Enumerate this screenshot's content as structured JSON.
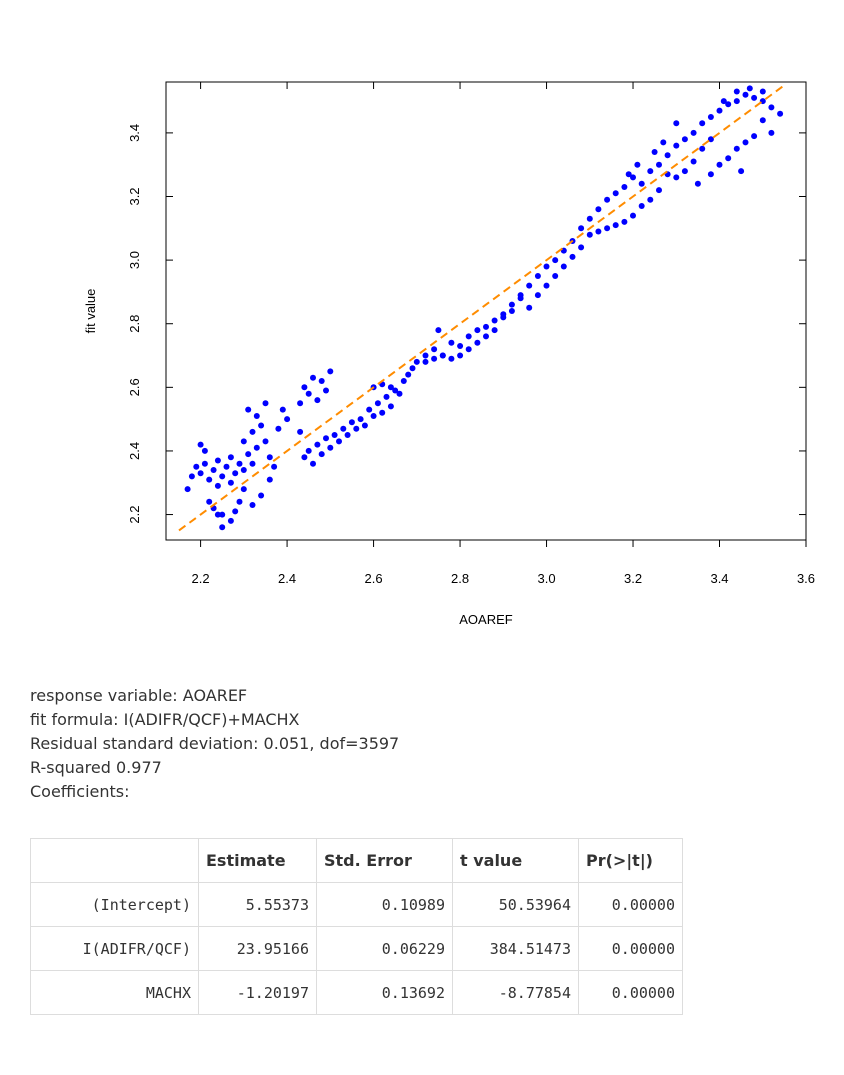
{
  "chart_data": {
    "type": "scatter",
    "title": "",
    "xlabel": "AOAREF",
    "ylabel": "fit value",
    "xlim": [
      2.12,
      3.6
    ],
    "ylim": [
      2.12,
      3.56
    ],
    "x_ticks": [
      "2.2",
      "2.4",
      "2.6",
      "2.8",
      "3.0",
      "3.2",
      "3.4",
      "3.6"
    ],
    "y_ticks": [
      "2.2",
      "2.4",
      "2.6",
      "2.8",
      "3.0",
      "3.2",
      "3.4"
    ],
    "grid": false,
    "legend": "none",
    "point_color": "#0000ff",
    "reference_line": {
      "slope": 1,
      "intercept": 0,
      "x_range": [
        2.15,
        3.55
      ],
      "color": "#ff8c00",
      "style": "dashed"
    },
    "series": [
      {
        "points": [
          [
            2.17,
            2.28
          ],
          [
            2.18,
            2.32
          ],
          [
            2.19,
            2.35
          ],
          [
            2.2,
            2.33
          ],
          [
            2.21,
            2.36
          ],
          [
            2.22,
            2.31
          ],
          [
            2.23,
            2.34
          ],
          [
            2.24,
            2.37
          ],
          [
            2.25,
            2.32
          ],
          [
            2.26,
            2.35
          ],
          [
            2.27,
            2.38
          ],
          [
            2.28,
            2.33
          ],
          [
            2.29,
            2.36
          ],
          [
            2.3,
            2.34
          ],
          [
            2.31,
            2.39
          ],
          [
            2.32,
            2.36
          ],
          [
            2.33,
            2.41
          ],
          [
            2.2,
            2.42
          ],
          [
            2.21,
            2.4
          ],
          [
            2.24,
            2.29
          ],
          [
            2.27,
            2.3
          ],
          [
            2.3,
            2.43
          ],
          [
            2.32,
            2.46
          ],
          [
            2.34,
            2.48
          ],
          [
            2.33,
            2.51
          ],
          [
            2.35,
            2.55
          ],
          [
            2.31,
            2.53
          ],
          [
            2.23,
            2.22
          ],
          [
            2.25,
            2.2
          ],
          [
            2.27,
            2.18
          ],
          [
            2.22,
            2.24
          ],
          [
            2.28,
            2.21
          ],
          [
            2.29,
            2.24
          ],
          [
            2.3,
            2.28
          ],
          [
            2.32,
            2.23
          ],
          [
            2.34,
            2.26
          ],
          [
            2.25,
            2.16
          ],
          [
            2.24,
            2.2
          ],
          [
            2.36,
            2.31
          ],
          [
            2.37,
            2.35
          ],
          [
            2.36,
            2.38
          ],
          [
            2.35,
            2.43
          ],
          [
            2.38,
            2.47
          ],
          [
            2.4,
            2.5
          ],
          [
            2.39,
            2.53
          ],
          [
            2.43,
            2.46
          ],
          [
            2.44,
            2.38
          ],
          [
            2.45,
            2.4
          ],
          [
            2.46,
            2.36
          ],
          [
            2.47,
            2.42
          ],
          [
            2.48,
            2.39
          ],
          [
            2.49,
            2.44
          ],
          [
            2.5,
            2.41
          ],
          [
            2.51,
            2.45
          ],
          [
            2.52,
            2.43
          ],
          [
            2.53,
            2.47
          ],
          [
            2.54,
            2.45
          ],
          [
            2.55,
            2.49
          ],
          [
            2.56,
            2.47
          ],
          [
            2.57,
            2.5
          ],
          [
            2.44,
            2.6
          ],
          [
            2.46,
            2.63
          ],
          [
            2.48,
            2.62
          ],
          [
            2.5,
            2.65
          ],
          [
            2.47,
            2.56
          ],
          [
            2.45,
            2.58
          ],
          [
            2.43,
            2.55
          ],
          [
            2.49,
            2.59
          ],
          [
            2.58,
            2.48
          ],
          [
            2.59,
            2.53
          ],
          [
            2.6,
            2.51
          ],
          [
            2.61,
            2.55
          ],
          [
            2.62,
            2.52
          ],
          [
            2.63,
            2.57
          ],
          [
            2.64,
            2.54
          ],
          [
            2.65,
            2.59
          ],
          [
            2.6,
            2.6
          ],
          [
            2.62,
            2.61
          ],
          [
            2.64,
            2.6
          ],
          [
            2.66,
            2.58
          ],
          [
            2.67,
            2.62
          ],
          [
            2.68,
            2.64
          ],
          [
            2.69,
            2.66
          ],
          [
            2.7,
            2.68
          ],
          [
            2.72,
            2.7
          ],
          [
            2.74,
            2.72
          ],
          [
            2.76,
            2.7
          ],
          [
            2.78,
            2.74
          ],
          [
            2.8,
            2.73
          ],
          [
            2.82,
            2.76
          ],
          [
            2.84,
            2.78
          ],
          [
            2.86,
            2.79
          ],
          [
            2.88,
            2.81
          ],
          [
            2.9,
            2.83
          ],
          [
            2.92,
            2.86
          ],
          [
            2.94,
            2.89
          ],
          [
            2.96,
            2.92
          ],
          [
            2.98,
            2.95
          ],
          [
            3.0,
            2.98
          ],
          [
            3.02,
            3.0
          ],
          [
            3.04,
            3.03
          ],
          [
            3.06,
            3.06
          ],
          [
            3.08,
            3.1
          ],
          [
            3.1,
            3.13
          ],
          [
            3.12,
            3.16
          ],
          [
            3.14,
            3.19
          ],
          [
            3.16,
            3.21
          ],
          [
            3.18,
            3.23
          ],
          [
            3.2,
            3.26
          ],
          [
            3.22,
            3.24
          ],
          [
            3.24,
            3.28
          ],
          [
            3.26,
            3.3
          ],
          [
            3.28,
            3.33
          ],
          [
            3.3,
            3.36
          ],
          [
            3.32,
            3.38
          ],
          [
            3.34,
            3.4
          ],
          [
            3.36,
            3.43
          ],
          [
            3.38,
            3.45
          ],
          [
            3.4,
            3.47
          ],
          [
            3.42,
            3.49
          ],
          [
            3.44,
            3.5
          ],
          [
            3.46,
            3.52
          ],
          [
            3.48,
            3.51
          ],
          [
            3.5,
            3.5
          ],
          [
            3.52,
            3.48
          ],
          [
            3.54,
            3.46
          ],
          [
            3.5,
            3.53
          ],
          [
            3.47,
            3.54
          ],
          [
            3.44,
            3.53
          ],
          [
            3.41,
            3.5
          ],
          [
            3.38,
            3.38
          ],
          [
            3.36,
            3.35
          ],
          [
            3.34,
            3.31
          ],
          [
            3.32,
            3.28
          ],
          [
            3.3,
            3.26
          ],
          [
            3.28,
            3.27
          ],
          [
            3.26,
            3.22
          ],
          [
            3.24,
            3.19
          ],
          [
            3.22,
            3.17
          ],
          [
            3.2,
            3.14
          ],
          [
            3.18,
            3.12
          ],
          [
            3.16,
            3.11
          ],
          [
            3.14,
            3.1
          ],
          [
            3.12,
            3.09
          ],
          [
            3.1,
            3.08
          ],
          [
            3.3,
            3.43
          ],
          [
            3.27,
            3.37
          ],
          [
            3.25,
            3.34
          ],
          [
            3.21,
            3.3
          ],
          [
            3.19,
            3.27
          ],
          [
            3.48,
            3.39
          ],
          [
            3.46,
            3.37
          ],
          [
            3.44,
            3.35
          ],
          [
            3.42,
            3.32
          ],
          [
            3.4,
            3.3
          ],
          [
            3.45,
            3.28
          ],
          [
            3.5,
            3.44
          ],
          [
            3.52,
            3.4
          ],
          [
            3.38,
            3.27
          ],
          [
            3.35,
            3.24
          ],
          [
            2.96,
            2.85
          ],
          [
            2.94,
            2.88
          ],
          [
            2.92,
            2.84
          ],
          [
            2.9,
            2.82
          ],
          [
            2.88,
            2.78
          ],
          [
            2.86,
            2.76
          ],
          [
            2.84,
            2.74
          ],
          [
            2.82,
            2.72
          ],
          [
            2.8,
            2.7
          ],
          [
            2.78,
            2.69
          ],
          [
            2.76,
            2.7
          ],
          [
            2.74,
            2.69
          ],
          [
            2.72,
            2.68
          ],
          [
            3.0,
            2.92
          ],
          [
            3.02,
            2.95
          ],
          [
            3.04,
            2.98
          ],
          [
            3.06,
            3.01
          ],
          [
            3.08,
            3.04
          ],
          [
            2.98,
            2.89
          ],
          [
            2.75,
            2.78
          ]
        ]
      }
    ]
  },
  "summary": {
    "response_line": "response variable: AOAREF",
    "formula_line": "fit formula: I(ADIFR/QCF)+MACHX",
    "residual_line": "Residual standard deviation: 0.051, dof=3597",
    "rsquared_line": "R-squared 0.977",
    "coefficients_heading": "Coefficients:"
  },
  "table": {
    "headers": [
      "",
      "Estimate",
      "Std. Error",
      "t value",
      "Pr(>|t|)"
    ],
    "rows": [
      [
        "(Intercept)",
        "5.55373",
        "0.10989",
        "50.53964",
        "0.00000"
      ],
      [
        "I(ADIFR/QCF)",
        "23.95166",
        "0.06229",
        "384.51473",
        "0.00000"
      ],
      [
        "MACHX",
        "-1.20197",
        "0.13692",
        "-8.77854",
        "0.00000"
      ]
    ]
  }
}
